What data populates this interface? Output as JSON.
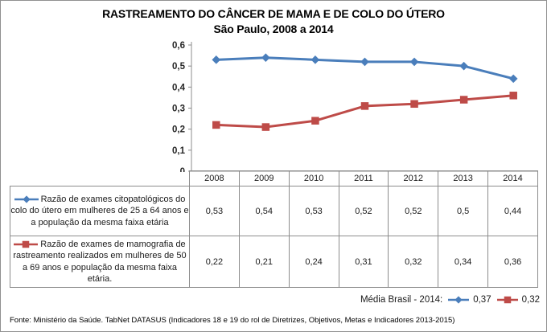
{
  "title": {
    "line1": "RASTREAMENTO DO CÂNCER DE MAMA E DE COLO DO ÚTERO",
    "line2": "São Paulo, 2008 a 2014"
  },
  "colors": {
    "series_blue": "#4A7EBB",
    "series_red": "#BE4B48",
    "axis_line": "#8c8c8c",
    "table_border": "#8c8c8c"
  },
  "chart_data": {
    "type": "line",
    "categories": [
      "2008",
      "2009",
      "2010",
      "2011",
      "2012",
      "2013",
      "2014"
    ],
    "series": [
      {
        "name": "Razão de exames citopatológicos do colo do útero em mulheres de 25 a 64 anos e a população da mesma faixa etária",
        "values": [
          0.53,
          0.54,
          0.53,
          0.52,
          0.52,
          0.5,
          0.44
        ],
        "color": "#4A7EBB",
        "marker": "diamond"
      },
      {
        "name": "Razão de exames de mamografia de rastreamento realizados em mulheres de 50 a 69 anos e população da mesma faixa etária.",
        "values": [
          0.22,
          0.21,
          0.24,
          0.31,
          0.32,
          0.34,
          0.36
        ],
        "color": "#BE4B48",
        "marker": "square"
      }
    ],
    "title": "RASTREAMENTO DO CÂNCER DE MAMA E DE COLO DO ÚTERO — São Paulo, 2008 a 2014",
    "xlabel": "",
    "ylabel": "",
    "ylim": [
      0,
      0.6
    ],
    "ytick_step": 0.1,
    "ytick_labels": [
      "0",
      "0,1",
      "0,2",
      "0,3",
      "0,4",
      "0,5",
      "0,6"
    ],
    "grid": false,
    "legend_position": "table-left"
  },
  "table": {
    "years": [
      "2008",
      "2009",
      "2010",
      "2011",
      "2012",
      "2013",
      "2014"
    ],
    "rows": [
      {
        "legend": "Razão de exames citopatológicos do colo do útero em mulheres de 25 a 64 anos e a população da mesma faixa etária",
        "marker": "diamond",
        "color": "#4A7EBB",
        "values": [
          "0,53",
          "0,54",
          "0,53",
          "0,52",
          "0,52",
          "0,5",
          "0,44"
        ]
      },
      {
        "legend": "Razão de exames de mamografia de rastreamento realizados em mulheres de 50 a 69 anos e população da mesma faixa etária.",
        "marker": "square",
        "color": "#BE4B48",
        "values": [
          "0,22",
          "0,21",
          "0,24",
          "0,31",
          "0,32",
          "0,34",
          "0,36"
        ]
      }
    ]
  },
  "media_brasil": {
    "label": "Média Brasil - 2014:",
    "values": [
      {
        "value": "0,37",
        "color": "#4A7EBB",
        "marker": "diamond"
      },
      {
        "value": "0,32",
        "color": "#BE4B48",
        "marker": "square"
      }
    ]
  },
  "footer": {
    "source": "Fonte: Ministério da Saúde. TabNet DATASUS (Indicadores 18 e 19 do rol de Diretrizes, Objetivos, Metas e Indicadores 2013-2015)"
  }
}
